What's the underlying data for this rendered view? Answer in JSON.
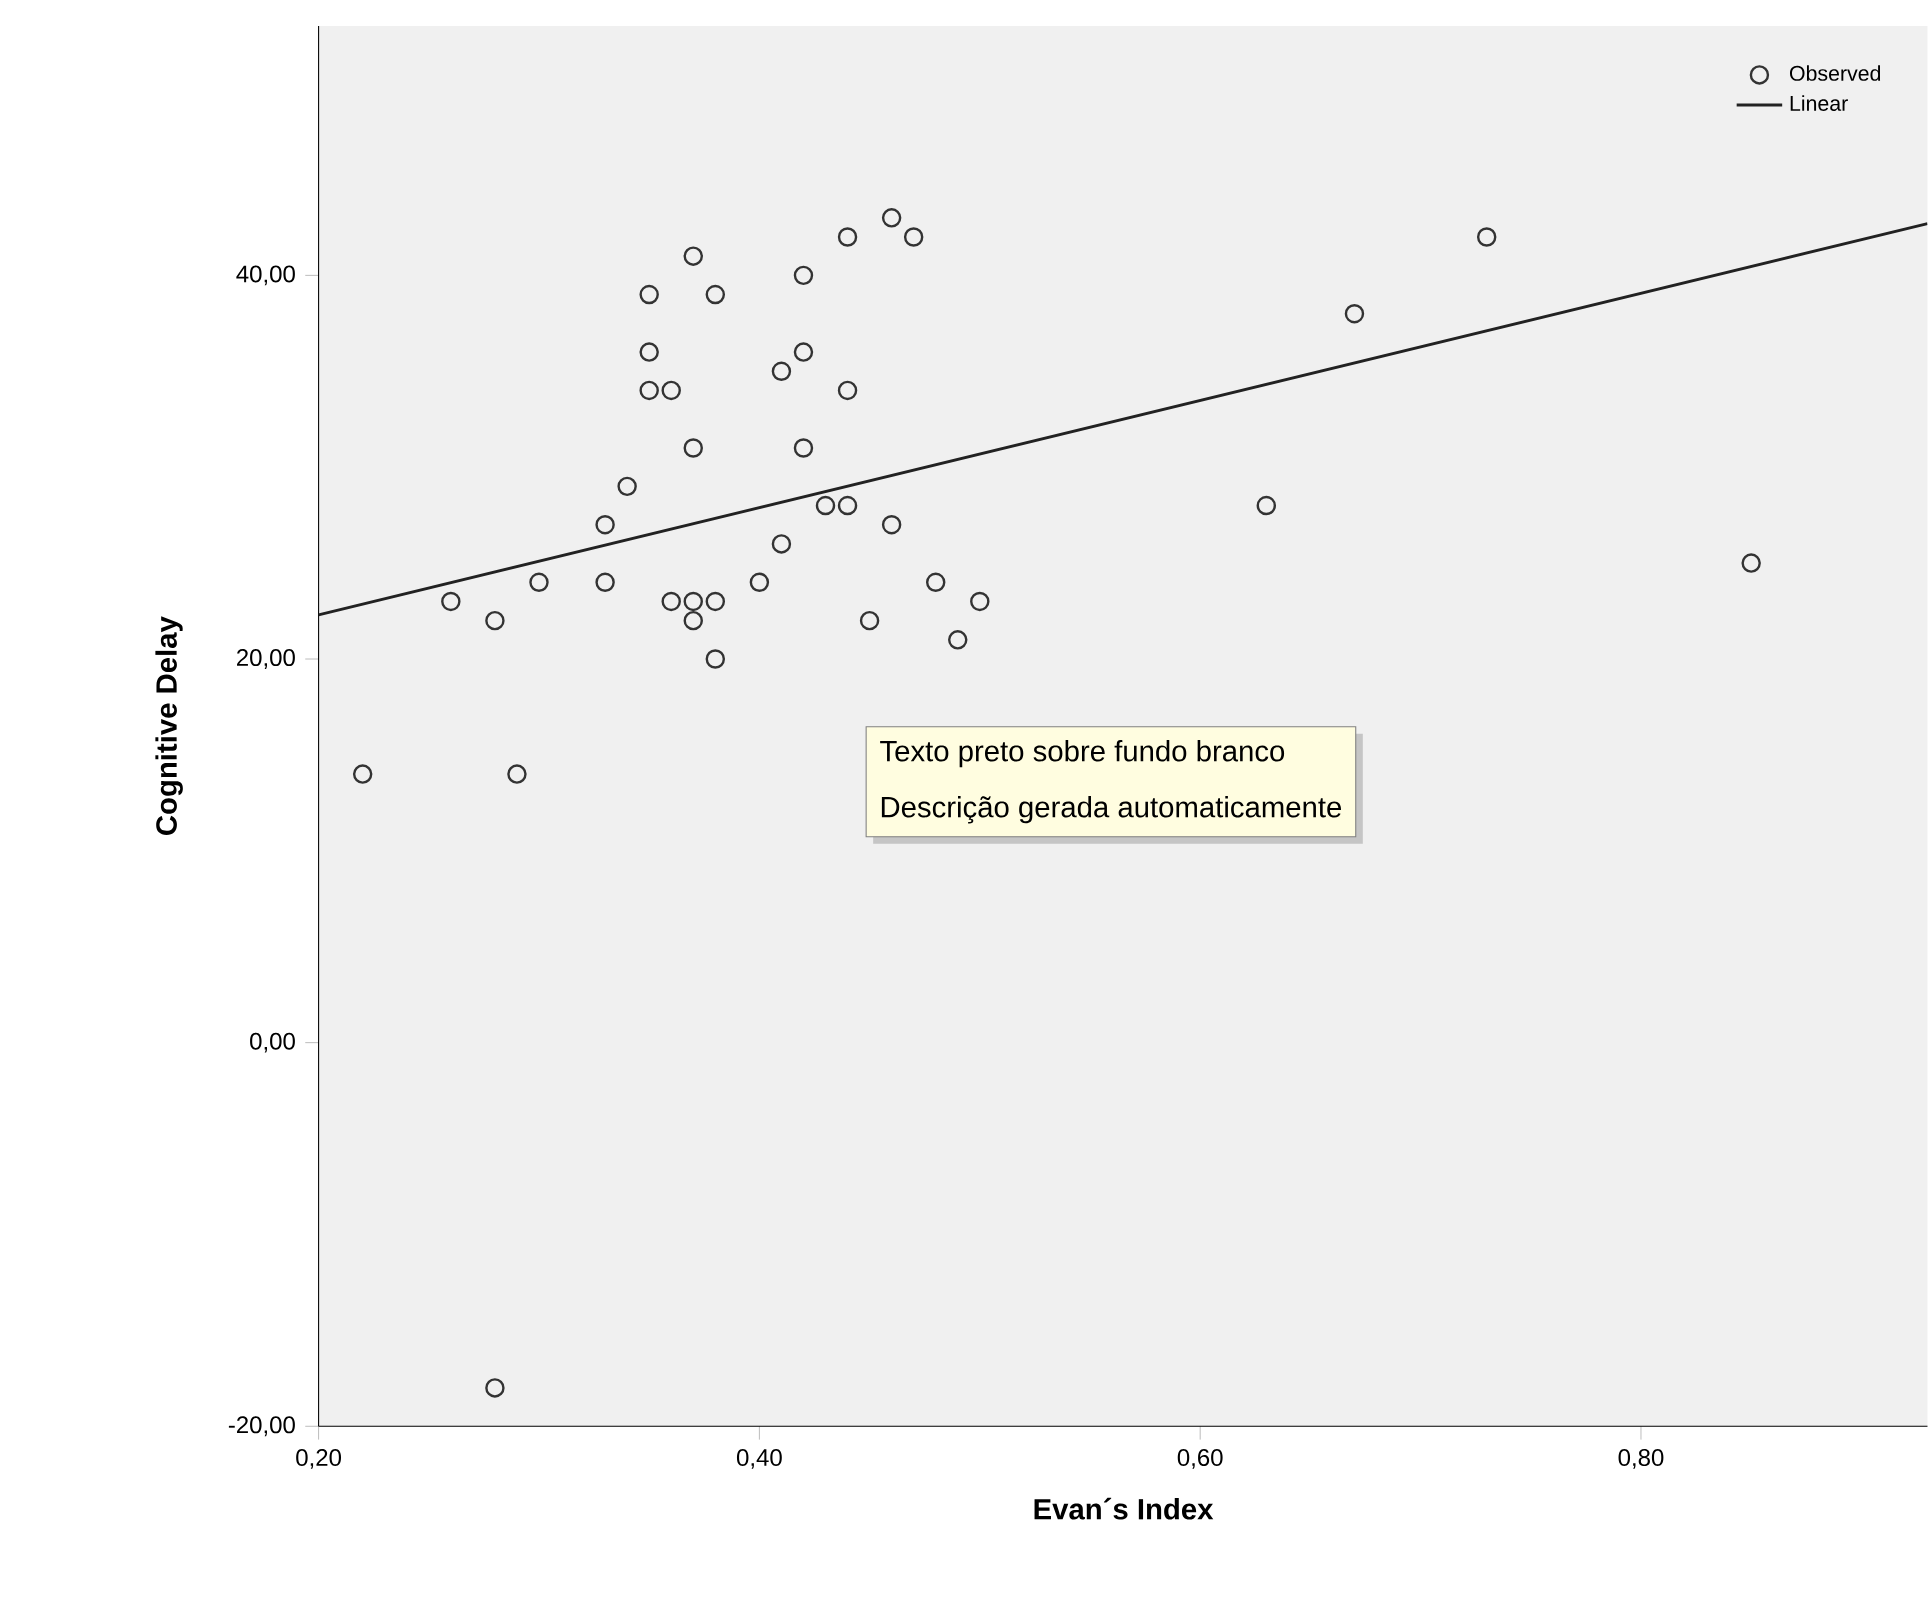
{
  "chart_data": {
    "type": "scatter",
    "xlabel": "Evan´s Index",
    "ylabel": "Cognitive Delay",
    "xlim": [
      0.2,
      0.93
    ],
    "ylim": [
      -20,
      53
    ],
    "xticks": [
      {
        "value": 0.2,
        "label": "0,20"
      },
      {
        "value": 0.4,
        "label": "0,40"
      },
      {
        "value": 0.6,
        "label": "0,60"
      },
      {
        "value": 0.8,
        "label": "0,80"
      }
    ],
    "yticks": [
      {
        "value": -20,
        "label": "-20,00"
      },
      {
        "value": 0,
        "label": "0,00"
      },
      {
        "value": 20,
        "label": "20,00"
      },
      {
        "value": 40,
        "label": "40,00"
      }
    ],
    "grid": false,
    "legend": "top right",
    "series": [
      {
        "name": "Observed",
        "marker": "circle",
        "color": "#333333",
        "x": [
          0.46,
          0.47,
          0.44,
          0.37,
          0.42,
          0.35,
          0.38,
          0.35,
          0.42,
          0.41,
          0.35,
          0.36,
          0.44,
          0.37,
          0.42,
          0.34,
          0.33,
          0.43,
          0.44,
          0.46,
          0.41,
          0.4,
          0.33,
          0.3,
          0.26,
          0.28,
          0.36,
          0.37,
          0.38,
          0.37,
          0.38,
          0.45,
          0.48,
          0.5,
          0.49,
          0.22,
          0.29,
          0.28,
          0.67,
          0.73,
          0.63,
          0.85
        ],
        "values": [
          43,
          42,
          42,
          41,
          40,
          39,
          39,
          36,
          36,
          35,
          34,
          34,
          34,
          31,
          31,
          29,
          27,
          28,
          28,
          27,
          26,
          24,
          24,
          24,
          23,
          22,
          23,
          23,
          23,
          22,
          20,
          22,
          24,
          23,
          21,
          14,
          14,
          -18,
          38,
          42,
          28,
          25
        ]
      },
      {
        "name": "Linear",
        "type": "line",
        "marker": "none",
        "color": "#222222",
        "x": [
          0.2,
          0.93
        ],
        "values": [
          22.3,
          42.7
        ]
      }
    ],
    "annotations": [
      "Texto preto sobre fundo branco",
      "Descrição gerada automaticamente"
    ]
  }
}
